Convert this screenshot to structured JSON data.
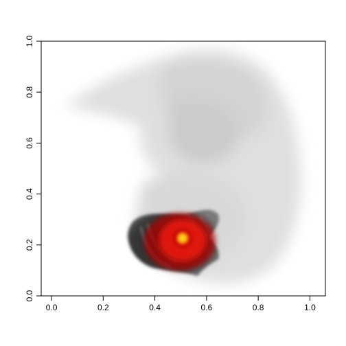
{
  "chart_data": {
    "type": "heatmap",
    "title": "",
    "xlabel": "",
    "ylabel": "",
    "xlim": [
      -0.04,
      1.06
    ],
    "ylim": [
      0.0,
      1.0
    ],
    "x_ticks": [
      "0.0",
      "0.2",
      "0.4",
      "0.6",
      "0.8",
      "1.0"
    ],
    "y_ticks": [
      "0.0",
      "0.2",
      "0.4",
      "0.6",
      "0.8",
      "1.0"
    ],
    "background_image": "grayscale embryo section",
    "overlay": {
      "description": "grayscale tissue region with red-yellow intensity overlay",
      "region_x_range": [
        0.31,
        0.62
      ],
      "region_y_range": [
        0.08,
        0.33
      ],
      "hotspot": {
        "x": 0.5,
        "y": 0.22
      },
      "colors": {
        "tissue": "#3a3a3a",
        "heat_low": "#8b0000",
        "heat_mid": "#e8140a",
        "heat_high": "#ffd020"
      }
    },
    "grid": false,
    "legend": "none"
  }
}
